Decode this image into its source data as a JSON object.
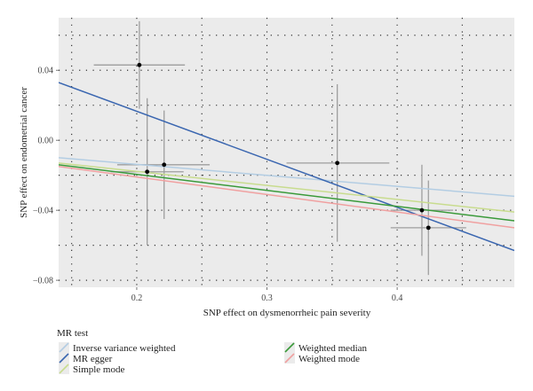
{
  "chart_data": {
    "type": "scatter",
    "xlabel": "SNP effect on dysmenorrheic pain severity",
    "ylabel": "SNP effect on endometrial cancer",
    "xlim": [
      0.14,
      0.49
    ],
    "ylim": [
      -0.084,
      0.07
    ],
    "x_ticks": [
      0.2,
      0.3,
      0.4
    ],
    "x_tick_labels": [
      "0.2",
      "0.3",
      "0.4"
    ],
    "y_ticks": [
      -0.08,
      -0.04,
      0.0,
      0.04
    ],
    "y_tick_labels": [
      "−0.08",
      "−0.04",
      "0.00",
      "0.04"
    ],
    "grid": true,
    "background": "#ebebeb",
    "points": [
      {
        "x": 0.202,
        "y": 0.043,
        "x_low": 0.167,
        "x_high": 0.237,
        "y_low": 0.018,
        "y_high": 0.068
      },
      {
        "x": 0.208,
        "y": -0.018,
        "x_low": 0.18,
        "x_high": 0.236,
        "y_low": -0.06,
        "y_high": 0.024
      },
      {
        "x": 0.221,
        "y": -0.014,
        "x_low": 0.185,
        "x_high": 0.256,
        "y_low": -0.045,
        "y_high": 0.017
      },
      {
        "x": 0.354,
        "y": -0.013,
        "x_low": 0.315,
        "x_high": 0.394,
        "y_low": -0.058,
        "y_high": 0.032
      },
      {
        "x": 0.419,
        "y": -0.04,
        "x_low": 0.395,
        "x_high": 0.443,
        "y_low": -0.066,
        "y_high": -0.014
      },
      {
        "x": 0.424,
        "y": -0.05,
        "x_low": 0.395,
        "x_high": 0.453,
        "y_low": -0.077,
        "y_high": -0.023
      }
    ],
    "lines": [
      {
        "name": "Inverse variance weighted",
        "color": "#b3cde3",
        "x": [
          0.14,
          0.49
        ],
        "y": [
          -0.01,
          -0.032
        ]
      },
      {
        "name": "MR egger",
        "color": "#3a66b0",
        "x": [
          0.14,
          0.49
        ],
        "y": [
          0.033,
          -0.063
        ]
      },
      {
        "name": "Simple mode",
        "color": "#c8dc8e",
        "x": [
          0.14,
          0.49
        ],
        "y": [
          -0.013,
          -0.041
        ]
      },
      {
        "name": "Weighted median",
        "color": "#3a9a3a",
        "x": [
          0.14,
          0.49
        ],
        "y": [
          -0.014,
          -0.046
        ]
      },
      {
        "name": "Weighted mode",
        "color": "#f0a0a0",
        "x": [
          0.14,
          0.49
        ],
        "y": [
          -0.015,
          -0.05
        ]
      }
    ],
    "legend": {
      "title": "MR test",
      "placement": "bottom",
      "columns": [
        [
          "Inverse variance weighted",
          "MR egger",
          "Simple mode"
        ],
        [
          "Weighted median",
          "Weighted mode"
        ]
      ]
    },
    "colors": {
      "point": "#000000",
      "errorbar": "#9e9e9e",
      "grid": "#333333"
    }
  }
}
